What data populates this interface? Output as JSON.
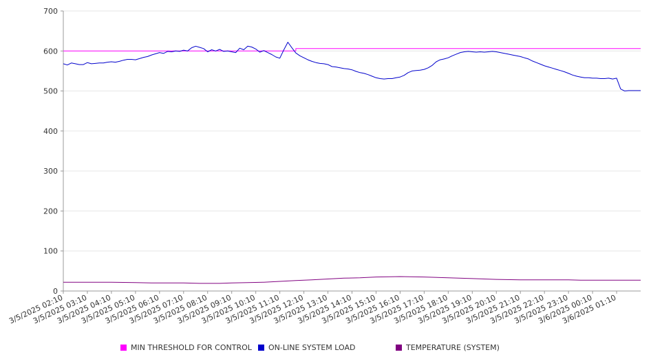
{
  "chart_data": {
    "type": "line",
    "title": "",
    "xlabel": "",
    "ylabel": "",
    "ylim": [
      0,
      700
    ],
    "yticks": [
      0,
      100,
      200,
      300,
      400,
      500,
      600,
      700
    ],
    "grid": true,
    "legend_position": "bottom",
    "x_tick_labels": [
      "3/5/2025 02:10",
      "3/5/2025 03:10",
      "3/5/2025 04:10",
      "3/5/2025 05:10",
      "3/5/2025 06:10",
      "3/5/2025 07:10",
      "3/5/2025 08:10",
      "3/5/2025 09:10",
      "3/5/2025 10:10",
      "3/5/2025 11:10",
      "3/5/2025 12:10",
      "3/5/2025 13:10",
      "3/5/2025 14:10",
      "3/5/2025 15:10",
      "3/5/2025 16:10",
      "3/5/2025 17:10",
      "3/5/2025 18:10",
      "3/5/2025 19:10",
      "3/5/2025 20:10",
      "3/5/2025 21:10",
      "3/5/2025 22:10",
      "3/5/2025 23:10",
      "3/6/2025 00:10",
      "3/6/2025 01:10"
    ],
    "x_range": [
      "3/5/2025 02:10",
      "3/6/2025 02:10"
    ],
    "series": [
      {
        "name": "MIN THRESHOLD FOR CONTROL",
        "color": "#ff00ff",
        "points": [
          [
            "3/5/2025 02:10",
            600
          ],
          [
            "3/5/2025 11:50",
            600
          ],
          [
            "3/5/2025 11:50",
            606
          ],
          [
            "3/6/2025 02:10",
            606
          ]
        ]
      },
      {
        "name": "ON-LINE SYSTEM LOAD",
        "color": "#0000cc",
        "points": [
          [
            "3/5/2025 02:10",
            568
          ],
          [
            "3/5/2025 02:20",
            565
          ],
          [
            "3/5/2025 02:30",
            570
          ],
          [
            "3/5/2025 02:40",
            568
          ],
          [
            "3/5/2025 02:50",
            566
          ],
          [
            "3/5/2025 03:00",
            566
          ],
          [
            "3/5/2025 03:10",
            571
          ],
          [
            "3/5/2025 03:20",
            568
          ],
          [
            "3/5/2025 03:30",
            569
          ],
          [
            "3/5/2025 03:40",
            570
          ],
          [
            "3/5/2025 03:50",
            570
          ],
          [
            "3/5/2025 04:00",
            572
          ],
          [
            "3/5/2025 04:10",
            573
          ],
          [
            "3/5/2025 04:20",
            572
          ],
          [
            "3/5/2025 04:30",
            574
          ],
          [
            "3/5/2025 04:40",
            577
          ],
          [
            "3/5/2025 04:50",
            579
          ],
          [
            "3/5/2025 05:00",
            579
          ],
          [
            "3/5/2025 05:10",
            578
          ],
          [
            "3/5/2025 05:20",
            581
          ],
          [
            "3/5/2025 05:30",
            584
          ],
          [
            "3/5/2025 05:40",
            586
          ],
          [
            "3/5/2025 05:50",
            590
          ],
          [
            "3/5/2025 06:00",
            593
          ],
          [
            "3/5/2025 06:10",
            596
          ],
          [
            "3/5/2025 06:20",
            594
          ],
          [
            "3/5/2025 06:30",
            599
          ],
          [
            "3/5/2025 06:40",
            598
          ],
          [
            "3/5/2025 06:50",
            600
          ],
          [
            "3/5/2025 07:00",
            599
          ],
          [
            "3/5/2025 07:10",
            602
          ],
          [
            "3/5/2025 07:20",
            600
          ],
          [
            "3/5/2025 07:30",
            608
          ],
          [
            "3/5/2025 07:40",
            612
          ],
          [
            "3/5/2025 07:50",
            609
          ],
          [
            "3/5/2025 08:00",
            606
          ],
          [
            "3/5/2025 08:10",
            598
          ],
          [
            "3/5/2025 08:20",
            603
          ],
          [
            "3/5/2025 08:30",
            600
          ],
          [
            "3/5/2025 08:40",
            604
          ],
          [
            "3/5/2025 08:50",
            599
          ],
          [
            "3/5/2025 09:00",
            600
          ],
          [
            "3/5/2025 09:10",
            598
          ],
          [
            "3/5/2025 09:20",
            596
          ],
          [
            "3/5/2025 09:30",
            607
          ],
          [
            "3/5/2025 09:40",
            603
          ],
          [
            "3/5/2025 09:50",
            612
          ],
          [
            "3/5/2025 10:00",
            610
          ],
          [
            "3/5/2025 10:10",
            605
          ],
          [
            "3/5/2025 10:20",
            597
          ],
          [
            "3/5/2025 10:30",
            601
          ],
          [
            "3/5/2025 10:40",
            596
          ],
          [
            "3/5/2025 10:50",
            591
          ],
          [
            "3/5/2025 11:00",
            585
          ],
          [
            "3/5/2025 11:10",
            582
          ],
          [
            "3/5/2025 11:20",
            603
          ],
          [
            "3/5/2025 11:30",
            622
          ],
          [
            "3/5/2025 11:40",
            608
          ],
          [
            "3/5/2025 11:50",
            595
          ],
          [
            "3/5/2025 12:00",
            588
          ],
          [
            "3/5/2025 12:10",
            583
          ],
          [
            "3/5/2025 12:20",
            578
          ],
          [
            "3/5/2025 12:30",
            574
          ],
          [
            "3/5/2025 12:40",
            571
          ],
          [
            "3/5/2025 12:50",
            569
          ],
          [
            "3/5/2025 13:00",
            568
          ],
          [
            "3/5/2025 13:10",
            566
          ],
          [
            "3/5/2025 13:20",
            561
          ],
          [
            "3/5/2025 13:30",
            560
          ],
          [
            "3/5/2025 13:40",
            558
          ],
          [
            "3/5/2025 13:50",
            556
          ],
          [
            "3/5/2025 14:00",
            555
          ],
          [
            "3/5/2025 14:10",
            553
          ],
          [
            "3/5/2025 14:20",
            549
          ],
          [
            "3/5/2025 14:30",
            546
          ],
          [
            "3/5/2025 14:40",
            544
          ],
          [
            "3/5/2025 14:50",
            541
          ],
          [
            "3/5/2025 15:00",
            537
          ],
          [
            "3/5/2025 15:10",
            533
          ],
          [
            "3/5/2025 15:20",
            531
          ],
          [
            "3/5/2025 15:30",
            530
          ],
          [
            "3/5/2025 15:40",
            531
          ],
          [
            "3/5/2025 15:50",
            531
          ],
          [
            "3/5/2025 16:00",
            533
          ],
          [
            "3/5/2025 16:10",
            535
          ],
          [
            "3/5/2025 16:20",
            539
          ],
          [
            "3/5/2025 16:30",
            546
          ],
          [
            "3/5/2025 16:40",
            550
          ],
          [
            "3/5/2025 16:50",
            551
          ],
          [
            "3/5/2025 17:00",
            552
          ],
          [
            "3/5/2025 17:10",
            554
          ],
          [
            "3/5/2025 17:20",
            558
          ],
          [
            "3/5/2025 17:30",
            564
          ],
          [
            "3/5/2025 17:40",
            573
          ],
          [
            "3/5/2025 17:50",
            578
          ],
          [
            "3/5/2025 18:00",
            580
          ],
          [
            "3/5/2025 18:10",
            583
          ],
          [
            "3/5/2025 18:20",
            588
          ],
          [
            "3/5/2025 18:30",
            592
          ],
          [
            "3/5/2025 18:40",
            596
          ],
          [
            "3/5/2025 18:50",
            598
          ],
          [
            "3/5/2025 19:00",
            599
          ],
          [
            "3/5/2025 19:10",
            598
          ],
          [
            "3/5/2025 19:20",
            597
          ],
          [
            "3/5/2025 19:30",
            598
          ],
          [
            "3/5/2025 19:40",
            597
          ],
          [
            "3/5/2025 19:50",
            598
          ],
          [
            "3/5/2025 20:00",
            599
          ],
          [
            "3/5/2025 20:10",
            598
          ],
          [
            "3/5/2025 20:20",
            596
          ],
          [
            "3/5/2025 20:30",
            594
          ],
          [
            "3/5/2025 20:40",
            592
          ],
          [
            "3/5/2025 20:50",
            590
          ],
          [
            "3/5/2025 21:00",
            588
          ],
          [
            "3/5/2025 21:10",
            586
          ],
          [
            "3/5/2025 21:20",
            583
          ],
          [
            "3/5/2025 21:30",
            580
          ],
          [
            "3/5/2025 21:40",
            575
          ],
          [
            "3/5/2025 21:50",
            571
          ],
          [
            "3/5/2025 22:00",
            567
          ],
          [
            "3/5/2025 22:10",
            563
          ],
          [
            "3/5/2025 22:20",
            560
          ],
          [
            "3/5/2025 22:30",
            557
          ],
          [
            "3/5/2025 22:40",
            554
          ],
          [
            "3/5/2025 22:50",
            551
          ],
          [
            "3/5/2025 23:00",
            548
          ],
          [
            "3/5/2025 23:10",
            544
          ],
          [
            "3/5/2025 23:20",
            540
          ],
          [
            "3/5/2025 23:30",
            537
          ],
          [
            "3/5/2025 23:40",
            535
          ],
          [
            "3/5/2025 23:50",
            533
          ],
          [
            "3/6/2025 00:00",
            533
          ],
          [
            "3/6/2025 00:10",
            532
          ],
          [
            "3/6/2025 00:20",
            532
          ],
          [
            "3/6/2025 00:30",
            531
          ],
          [
            "3/6/2025 00:40",
            531
          ],
          [
            "3/6/2025 00:50",
            532
          ],
          [
            "3/6/2025 01:00",
            530
          ],
          [
            "3/6/2025 01:10",
            532
          ],
          [
            "3/6/2025 01:20",
            505
          ],
          [
            "3/6/2025 01:30",
            500
          ],
          [
            "3/6/2025 01:40",
            501
          ],
          [
            "3/6/2025 01:50",
            501
          ],
          [
            "3/6/2025 02:00",
            501
          ],
          [
            "3/6/2025 02:10",
            501
          ]
        ]
      },
      {
        "name": "TEMPERATURE (SYSTEM)",
        "color": "#800080",
        "points": [
          [
            "3/5/2025 02:10",
            22
          ],
          [
            "3/5/2025 04:10",
            22
          ],
          [
            "3/5/2025 05:10",
            21
          ],
          [
            "3/5/2025 05:50",
            20
          ],
          [
            "3/5/2025 07:10",
            20
          ],
          [
            "3/5/2025 07:50",
            19
          ],
          [
            "3/5/2025 08:40",
            19
          ],
          [
            "3/5/2025 09:10",
            20
          ],
          [
            "3/5/2025 09:50",
            21
          ],
          [
            "3/5/2025 10:30",
            22
          ],
          [
            "3/5/2025 11:10",
            24
          ],
          [
            "3/5/2025 11:50",
            26
          ],
          [
            "3/5/2025 12:30",
            28
          ],
          [
            "3/5/2025 13:10",
            30
          ],
          [
            "3/5/2025 13:50",
            32
          ],
          [
            "3/5/2025 14:30",
            33
          ],
          [
            "3/5/2025 15:10",
            35
          ],
          [
            "3/5/2025 16:10",
            36
          ],
          [
            "3/5/2025 17:10",
            35
          ],
          [
            "3/5/2025 18:10",
            33
          ],
          [
            "3/5/2025 19:10",
            31
          ],
          [
            "3/5/2025 20:10",
            29
          ],
          [
            "3/5/2025 21:10",
            28
          ],
          [
            "3/5/2025 22:10",
            28
          ],
          [
            "3/5/2025 23:10",
            28
          ],
          [
            "3/5/2025 23:40",
            27
          ],
          [
            "3/6/2025 00:10",
            27
          ],
          [
            "3/6/2025 01:10",
            27
          ],
          [
            "3/6/2025 02:10",
            27
          ]
        ]
      }
    ]
  }
}
